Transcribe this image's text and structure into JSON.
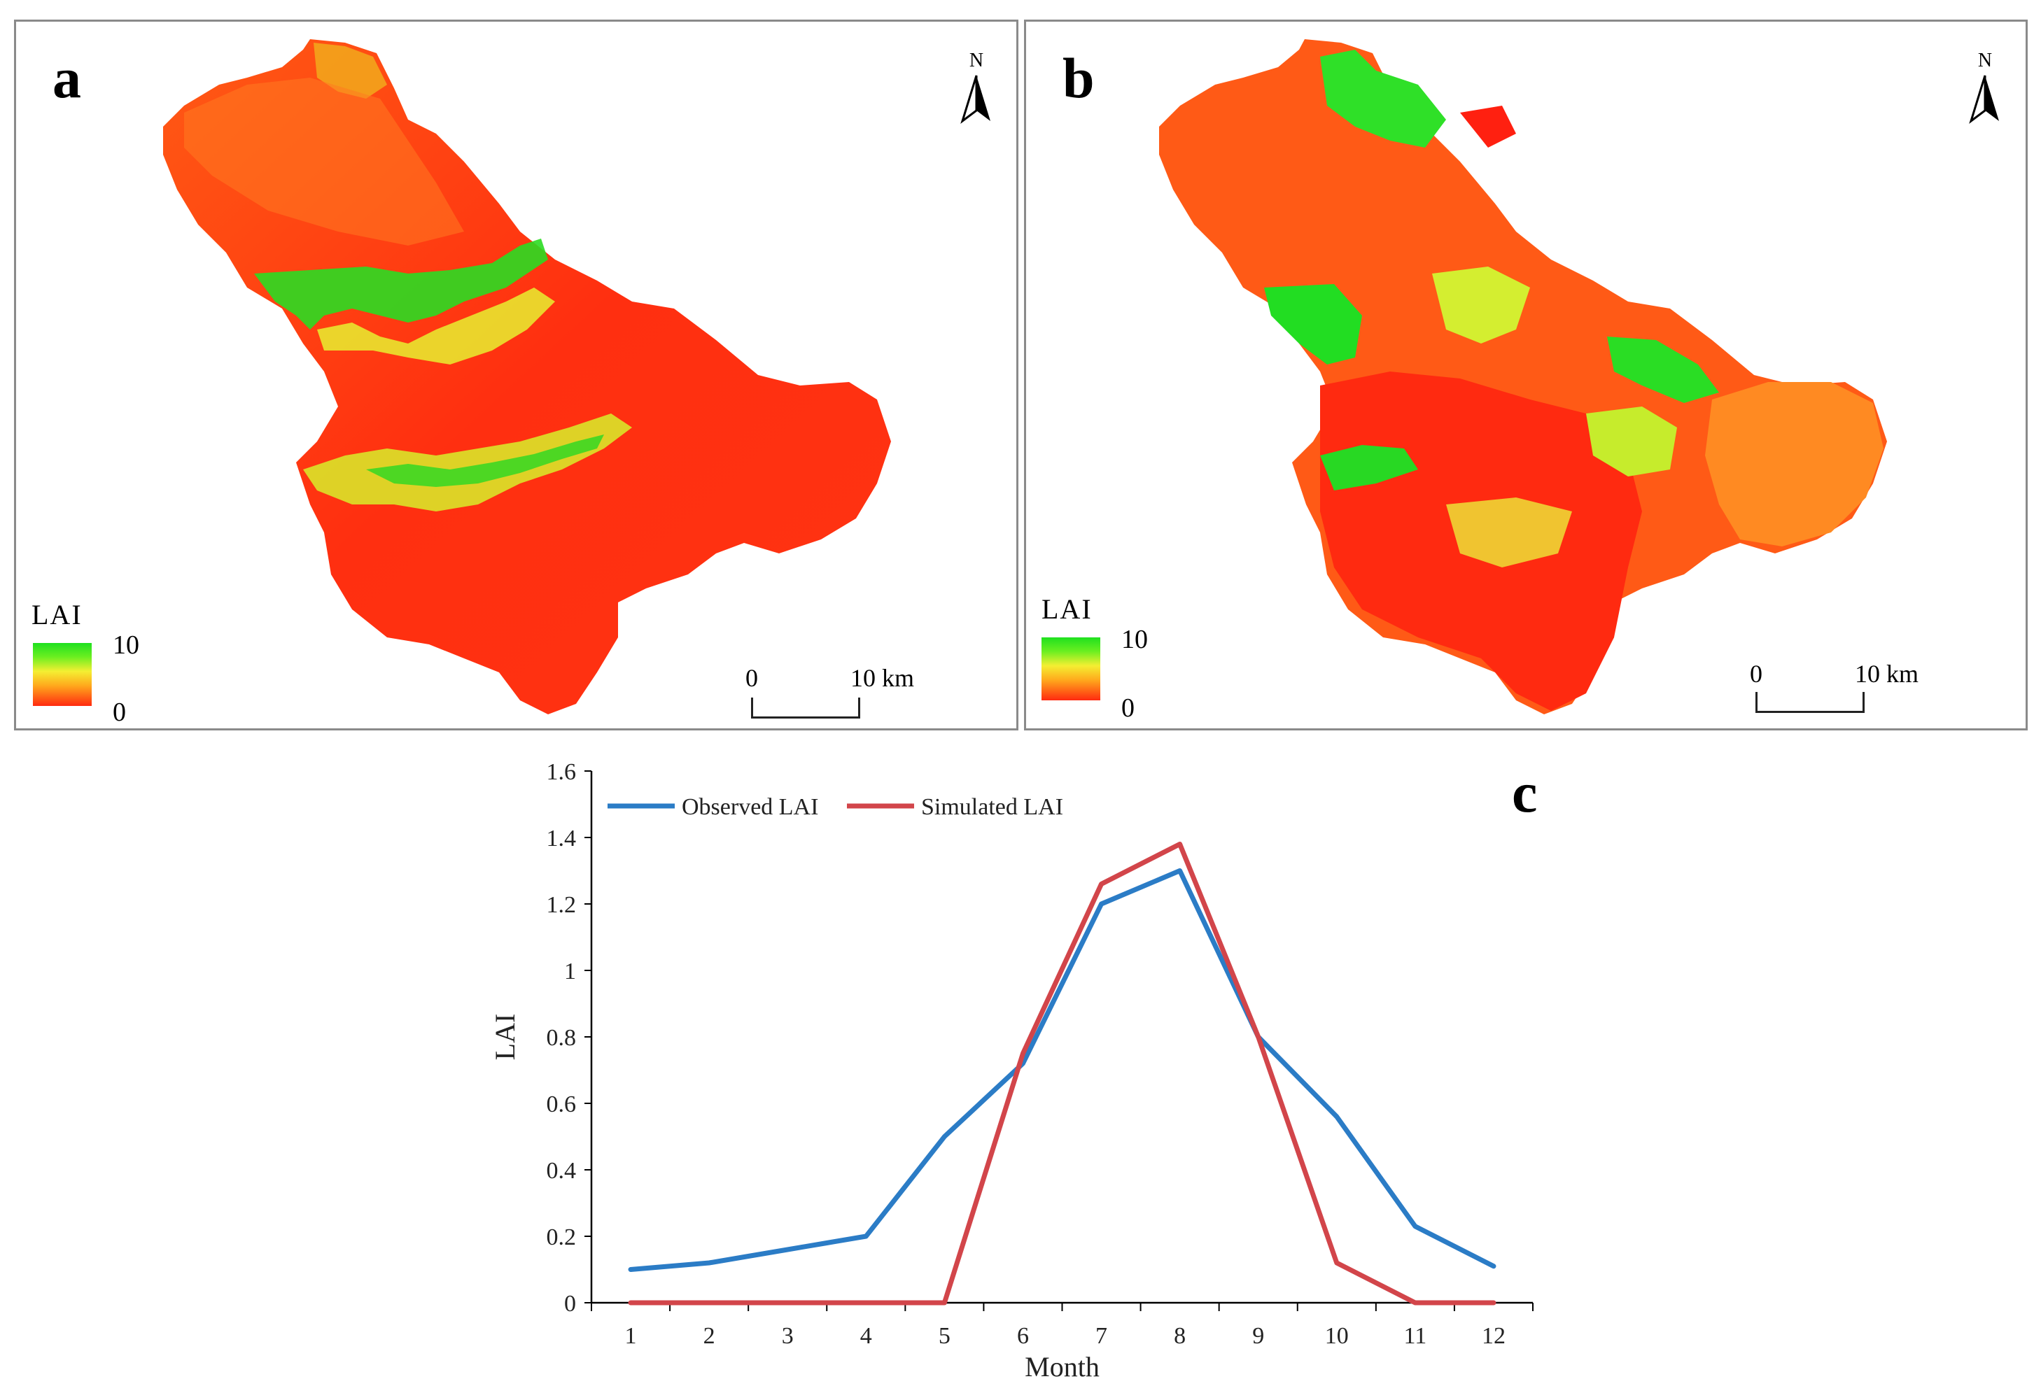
{
  "panel_a": {
    "letter": "a",
    "north_label": "N",
    "legend": {
      "title": "LAI",
      "max": "10",
      "min": "0"
    },
    "scale": {
      "start": "0",
      "end": "10 km"
    }
  },
  "panel_b": {
    "letter": "b",
    "north_label": "N",
    "legend": {
      "title": "LAI",
      "max": "10",
      "min": "0"
    },
    "scale": {
      "start": "0",
      "end": "10 km"
    }
  },
  "colors": {
    "map_red": "#ff2a10",
    "map_orange": "#ff7a1c",
    "map_yellow": "#e8f030",
    "map_green": "#22dd22",
    "observed": "#2b7cc6",
    "simulated": "#d2454a"
  },
  "chart_data": {
    "type": "line",
    "panel_letter": "c",
    "xlabel": "Month",
    "ylabel": "LAI",
    "ylim": [
      0,
      1.6
    ],
    "xlim": [
      0.5,
      12.5
    ],
    "x_ticks": [
      "1",
      "2",
      "3",
      "4",
      "5",
      "6",
      "7",
      "8",
      "9",
      "10",
      "11",
      "12"
    ],
    "y_ticks": [
      "0",
      "0.2",
      "0.4",
      "0.6",
      "0.8",
      "1",
      "1.2",
      "1.4",
      "1.6"
    ],
    "legend_position": "top-left",
    "grid": false,
    "series": [
      {
        "name": "Observed LAI",
        "color": "#2b7cc6",
        "x": [
          1,
          1.5,
          2,
          2.5,
          3,
          3.5,
          4,
          5,
          6,
          7,
          8,
          9,
          10,
          11,
          12
        ],
        "y": [
          0.1,
          0.11,
          0.12,
          0.14,
          0.16,
          0.18,
          0.2,
          0.5,
          0.72,
          1.2,
          1.3,
          0.8,
          0.56,
          0.23,
          0.11
        ]
      },
      {
        "name": "Simulated LAI",
        "color": "#d2454a",
        "x": [
          1,
          2,
          3,
          4,
          5,
          6,
          7,
          8,
          9,
          10,
          11,
          12
        ],
        "y": [
          0,
          0,
          0,
          0,
          0,
          0.75,
          1.26,
          1.38,
          0.8,
          0.12,
          0,
          0
        ]
      }
    ]
  }
}
